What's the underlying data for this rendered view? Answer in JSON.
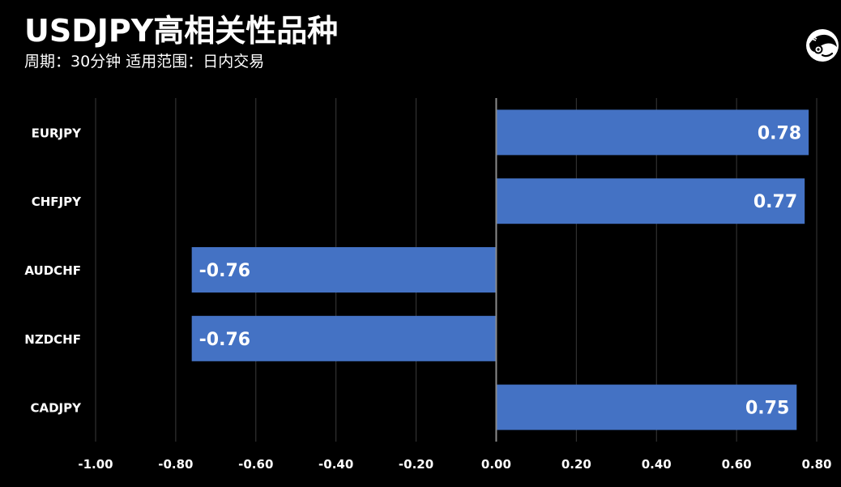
{
  "header": {
    "title": "USDJPY高相关性品种",
    "subtitle": "周期：30分钟  适用范围：日内交易"
  },
  "logo": {
    "icon": "brand-logo-icon"
  },
  "colors": {
    "background": "#000000",
    "bar": "#4472C4",
    "grid": "#3a3a3a",
    "zero_line": "#8a8a8a",
    "text": "#ffffff"
  },
  "chart_data": {
    "type": "bar",
    "orientation": "horizontal",
    "title": "USDJPY高相关性品种",
    "subtitle": "周期：30分钟  适用范围：日内交易",
    "categories": [
      "EURJPY",
      "CHFJPY",
      "AUDCHF",
      "NZDCHF",
      "CADJPY"
    ],
    "values": [
      0.78,
      0.77,
      -0.76,
      -0.76,
      0.75
    ],
    "value_labels": [
      "0.78",
      "0.77",
      "-0.76",
      "-0.76",
      "0.75"
    ],
    "xlim": [
      -1.0,
      0.8
    ],
    "xticks": [
      -1.0,
      -0.8,
      -0.6,
      -0.4,
      -0.2,
      0.0,
      0.2,
      0.4,
      0.6,
      0.8
    ],
    "xtick_labels": [
      "-1.00",
      "-0.80",
      "-0.60",
      "-0.40",
      "-0.20",
      "0.00",
      "0.20",
      "0.40",
      "0.60",
      "0.80"
    ],
    "grid": "vertical",
    "legend": "none",
    "xlabel": "",
    "ylabel": ""
  }
}
